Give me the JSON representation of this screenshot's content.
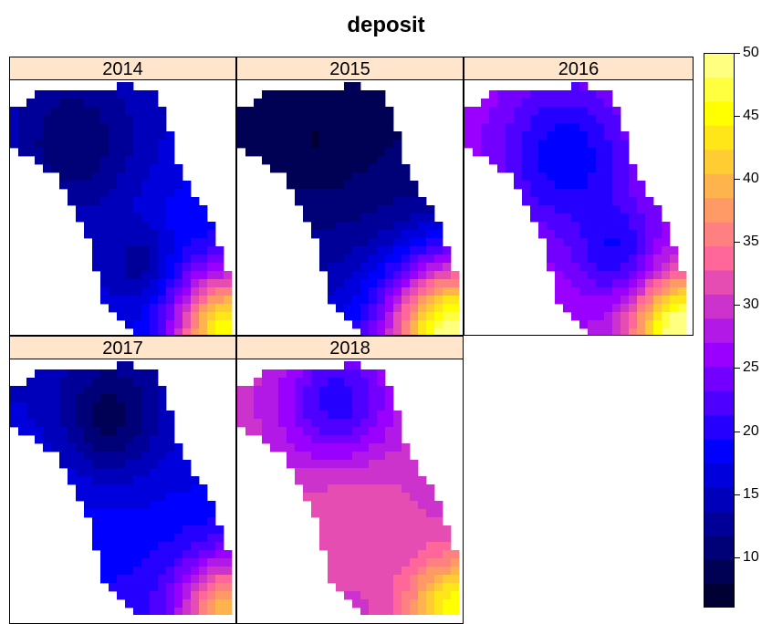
{
  "chart_data": {
    "type": "heatmap",
    "title": "deposit",
    "panels": [
      {
        "label": "2014"
      },
      {
        "label": "2015"
      },
      {
        "label": "2016"
      },
      {
        "label": "2017"
      },
      {
        "label": "2018"
      }
    ],
    "colorbar": {
      "min": 6,
      "max": 50,
      "step": 2.5,
      "ticks": [
        "10",
        "15",
        "20",
        "25",
        "30",
        "35",
        "40",
        "45",
        "50"
      ],
      "colors": [
        "#000033",
        "#000055",
        "#000077",
        "#000099",
        "#0000BB",
        "#0000DD",
        "#0000FF",
        "#2600FF",
        "#4D00FF",
        "#7300FF",
        "#9900FF",
        "#B319E6",
        "#CC33CC",
        "#E64DB3",
        "#FF6699",
        "#FF8080",
        "#FF9966",
        "#FFB34D",
        "#FFCC33",
        "#FFE619",
        "#FFFF00",
        "#FFFF40",
        "#FFFF80"
      ]
    },
    "legend_placement": "right"
  }
}
